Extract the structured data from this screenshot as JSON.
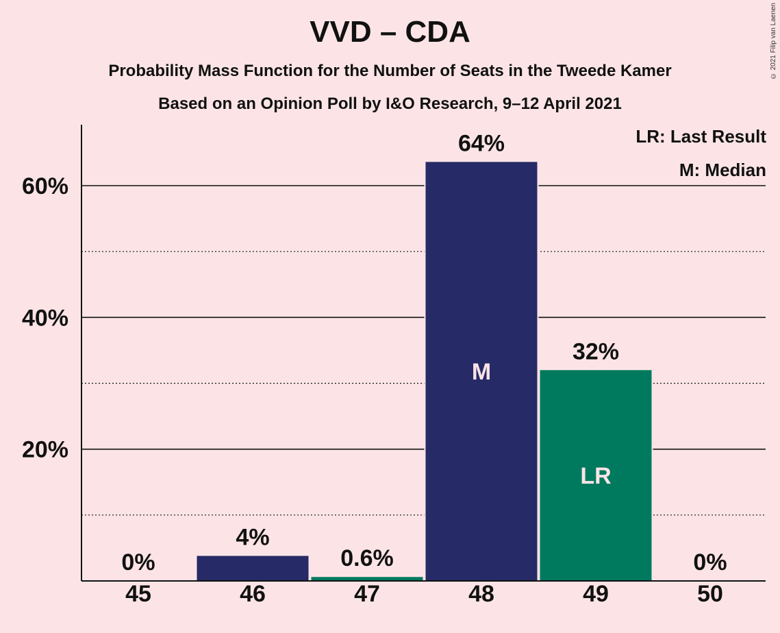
{
  "header": {
    "title": "VVD – CDA",
    "subtitle1": "Probability Mass Function for the Number of Seats in the Tweede Kamer",
    "subtitle2": "Based on an Opinion Poll by I&O Research, 9–12 April 2021",
    "copyright": "© 2021 Filip van Laenen"
  },
  "legend": {
    "last_result": "LR: Last Result",
    "median": "M: Median"
  },
  "chart_data": {
    "type": "bar",
    "categories": [
      "45",
      "46",
      "47",
      "48",
      "49",
      "50"
    ],
    "values": [
      0,
      3.8,
      0.6,
      63.6,
      32,
      0
    ],
    "value_labels": [
      "0%",
      "4%",
      "0.6%",
      "64%",
      "32%",
      "0%"
    ],
    "bar_colors": [
      "#262a66",
      "#262a66",
      "#007a5e",
      "#262a66",
      "#007a5e",
      "#262a66"
    ],
    "bar_markers": [
      "",
      "",
      "",
      "M",
      "LR",
      ""
    ],
    "ylim": [
      0,
      69
    ],
    "yticks": [
      20,
      40,
      60
    ],
    "ytick_labels": [
      "20%",
      "40%",
      "60%"
    ],
    "minor_gridlines": [
      10,
      30,
      50
    ],
    "grid": true,
    "legend_position": "top-right"
  }
}
